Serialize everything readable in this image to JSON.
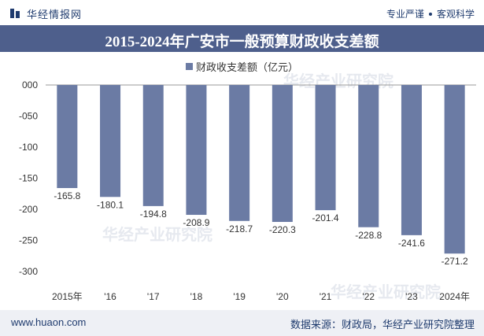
{
  "header": {
    "logo_text": "华经情报网",
    "slogan_left": "专业严谨",
    "slogan_right": "客观科学"
  },
  "watermark": "华经产业研究院",
  "chart_data": {
    "type": "bar",
    "title": "2015-2024年广安市一般预算财政收支差额",
    "legend": "财政收支差额（亿元）",
    "categories": [
      "2015年",
      "'16",
      "'17",
      "'18",
      "'19",
      "'20",
      "'21",
      "'22",
      "'23",
      "2024年"
    ],
    "series": [
      {
        "name": "财政收支差额（亿元）",
        "values": [
          -165.8,
          -180.1,
          -194.8,
          -208.9,
          -218.7,
          -220.3,
          -201.4,
          -228.8,
          -241.6,
          -271.2
        ]
      }
    ],
    "value_labels": [
      "-165.8",
      "-180.1",
      "-194.8",
      "-208.9",
      "-218.7",
      "-220.3",
      "-201.4",
      "-228.8",
      "-241.6",
      "-271.2"
    ],
    "ylim": [
      -300,
      0
    ],
    "y_ticks": [
      0,
      -50,
      -100,
      -150,
      -200,
      -250,
      -300
    ],
    "y_tick_labels": [
      "000",
      "-050",
      "-100",
      "-150",
      "-200",
      "-250",
      "-300"
    ],
    "bar_color": "#6b7ba4"
  },
  "footer": {
    "website": "www.huaon.com",
    "source": "数据来源：财政局，华经产业研究院整理"
  }
}
